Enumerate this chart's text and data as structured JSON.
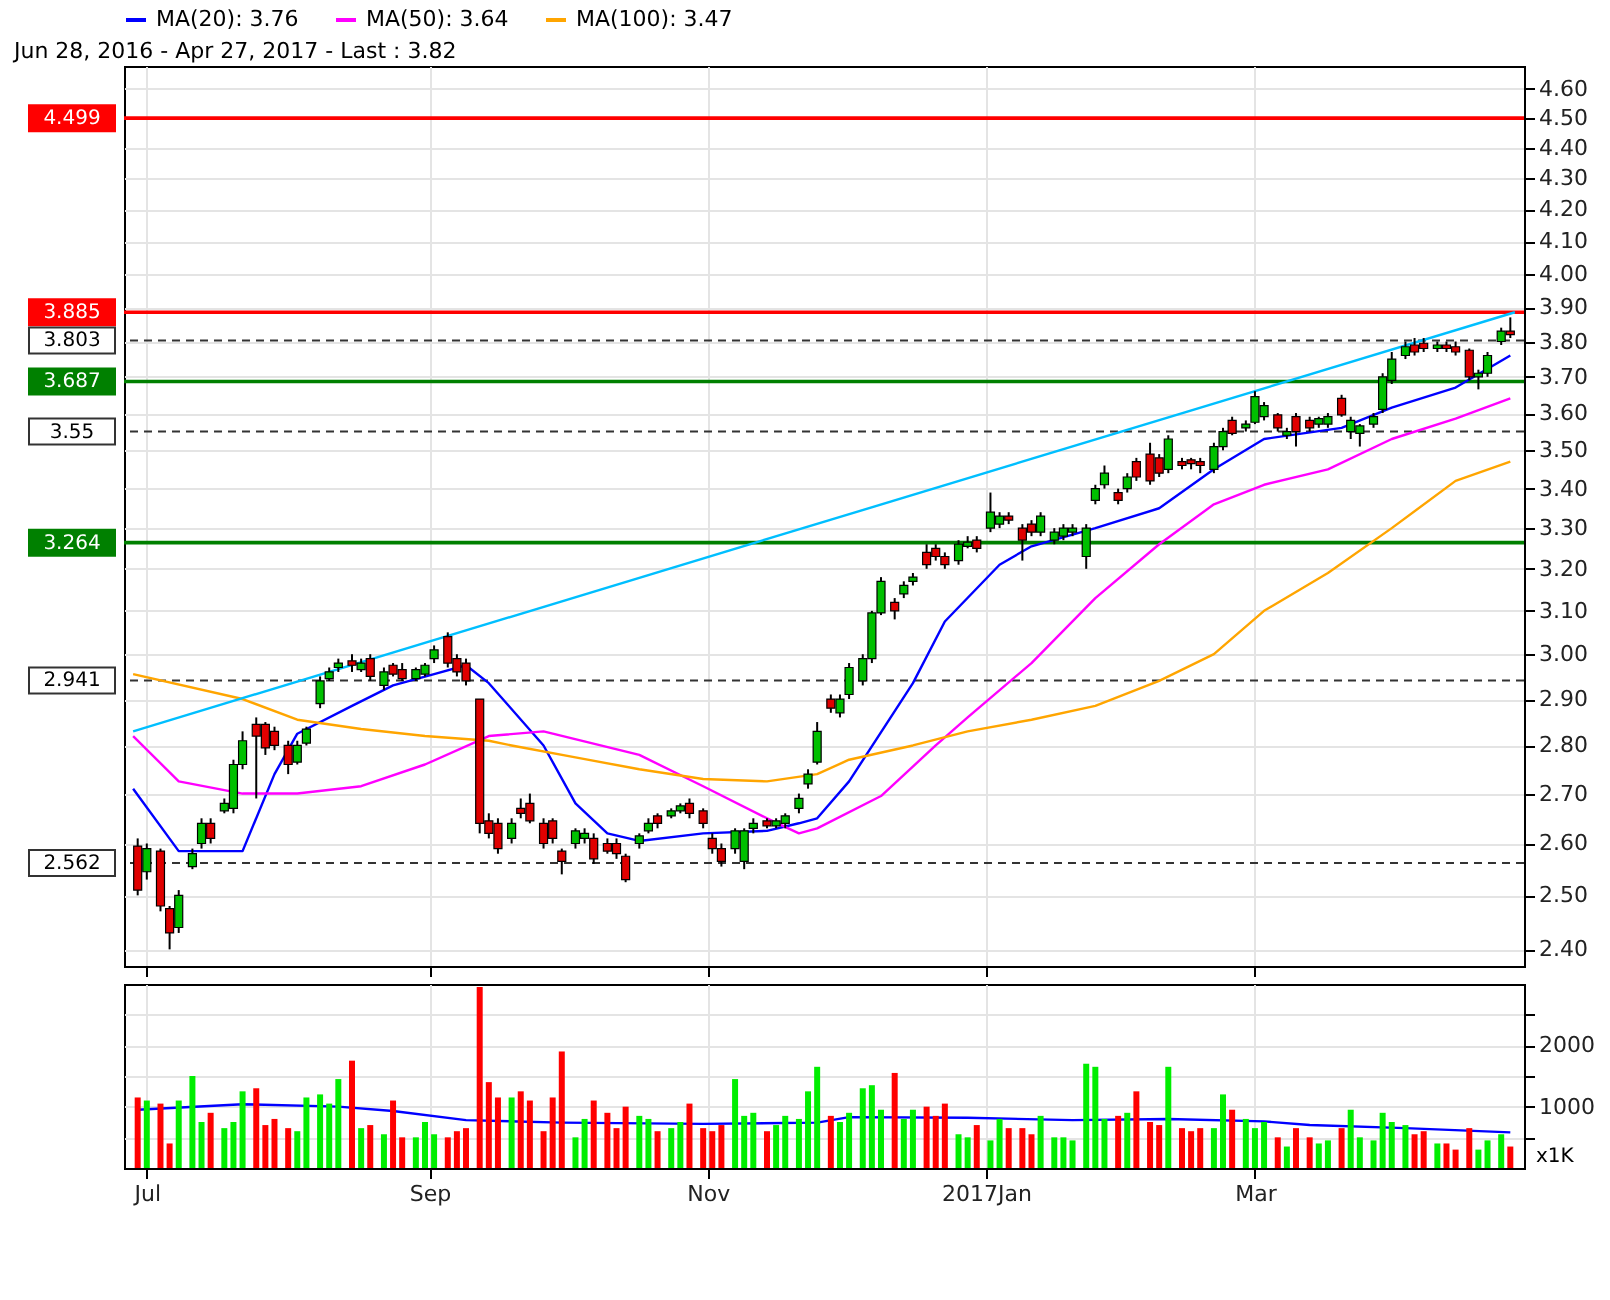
{
  "chart_data": [
    {
      "type": "candlestick",
      "title": "Jun 28, 2016 - Apr 27, 2017 - Last : 3.82",
      "x": [
        "2016-06-29",
        "2016-07-01",
        "2016-07-04",
        "2016-07-06",
        "2016-07-08",
        "2016-07-11",
        "2016-07-13",
        "2016-07-15",
        "2016-07-18",
        "2016-07-20",
        "2016-07-22",
        "2016-07-25",
        "2016-07-27",
        "2016-07-29",
        "2016-08-01",
        "2016-08-03",
        "2016-08-05",
        "2016-08-08",
        "2016-08-10",
        "2016-08-12",
        "2016-08-15",
        "2016-08-17",
        "2016-08-19",
        "2016-08-22",
        "2016-08-24",
        "2016-08-26",
        "2016-08-29",
        "2016-08-31",
        "2016-09-02",
        "2016-09-05",
        "2016-09-07",
        "2016-09-09",
        "2016-09-12",
        "2016-09-14",
        "2016-09-16",
        "2016-09-19",
        "2016-09-21",
        "2016-09-23",
        "2016-09-26",
        "2016-09-28",
        "2016-09-30",
        "2016-10-03",
        "2016-10-05",
        "2016-10-07",
        "2016-10-10",
        "2016-10-12",
        "2016-10-14",
        "2016-10-17",
        "2016-10-19",
        "2016-10-21",
        "2016-10-24",
        "2016-10-26",
        "2016-10-28",
        "2016-10-31",
        "2016-11-02",
        "2016-11-04",
        "2016-11-07",
        "2016-11-09",
        "2016-11-11",
        "2016-11-14",
        "2016-11-16",
        "2016-11-18",
        "2016-11-21",
        "2016-11-23",
        "2016-11-25",
        "2016-11-28",
        "2016-11-30",
        "2016-12-02",
        "2016-12-05",
        "2016-12-07",
        "2016-12-09",
        "2016-12-12",
        "2016-12-14",
        "2016-12-16",
        "2016-12-19",
        "2016-12-21",
        "2016-12-23",
        "2016-12-26",
        "2016-12-28",
        "2016-12-30",
        "2017-01-02",
        "2017-01-04",
        "2017-01-06",
        "2017-01-09",
        "2017-01-11",
        "2017-01-13",
        "2017-01-16",
        "2017-01-18",
        "2017-01-20",
        "2017-01-23",
        "2017-01-25",
        "2017-01-27",
        "2017-01-30",
        "2017-02-01",
        "2017-02-03",
        "2017-02-06",
        "2017-02-08",
        "2017-02-10",
        "2017-02-13",
        "2017-02-15",
        "2017-02-17",
        "2017-02-20",
        "2017-02-22",
        "2017-02-24",
        "2017-02-27",
        "2017-03-01",
        "2017-03-03",
        "2017-03-06",
        "2017-03-08",
        "2017-03-10",
        "2017-03-13",
        "2017-03-15",
        "2017-03-17",
        "2017-03-20",
        "2017-03-22",
        "2017-03-24",
        "2017-03-27",
        "2017-03-29",
        "2017-03-31",
        "2017-04-03",
        "2017-04-05",
        "2017-04-07",
        "2017-04-10",
        "2017-04-12",
        "2017-04-14",
        "2017-04-17",
        "2017-04-19",
        "2017-04-21",
        "2017-04-24",
        "2017-04-26"
      ],
      "ohlc": [
        [
          2.595,
          2.61,
          2.5,
          2.51
        ],
        [
          2.545,
          2.6,
          2.53,
          2.59
        ],
        [
          2.585,
          2.59,
          2.47,
          2.48
        ],
        [
          2.475,
          2.48,
          2.4,
          2.43
        ],
        [
          2.44,
          2.51,
          2.43,
          2.5
        ],
        [
          2.555,
          2.59,
          2.55,
          2.58
        ],
        [
          2.6,
          2.65,
          2.59,
          2.64
        ],
        [
          2.64,
          2.65,
          2.6,
          2.61
        ],
        [
          2.665,
          2.69,
          2.66,
          2.68
        ],
        [
          2.67,
          2.77,
          2.66,
          2.76
        ],
        [
          2.76,
          2.83,
          2.75,
          2.81
        ],
        [
          2.845,
          2.86,
          2.69,
          2.82
        ],
        [
          2.845,
          2.85,
          2.78,
          2.795
        ],
        [
          2.83,
          2.84,
          2.79,
          2.8
        ],
        [
          2.8,
          2.81,
          2.74,
          2.76
        ],
        [
          2.765,
          2.81,
          2.76,
          2.8
        ],
        [
          2.805,
          2.84,
          2.8,
          2.835
        ],
        [
          2.89,
          2.95,
          2.88,
          2.94
        ],
        [
          2.945,
          2.97,
          2.94,
          2.96
        ],
        [
          2.97,
          2.99,
          2.96,
          2.98
        ],
        [
          2.985,
          3.0,
          2.96,
          2.975
        ],
        [
          2.965,
          2.99,
          2.96,
          2.98
        ],
        [
          2.99,
          3.0,
          2.94,
          2.95
        ],
        [
          2.93,
          2.97,
          2.92,
          2.96
        ],
        [
          2.975,
          2.98,
          2.95,
          2.955
        ],
        [
          2.965,
          2.98,
          2.94,
          2.945
        ],
        [
          2.945,
          2.97,
          2.94,
          2.965
        ],
        [
          2.955,
          2.98,
          2.95,
          2.975
        ],
        [
          2.99,
          3.02,
          2.98,
          3.01
        ],
        [
          3.04,
          3.05,
          2.97,
          2.98
        ],
        [
          2.99,
          3.0,
          2.95,
          2.96
        ],
        [
          2.98,
          2.99,
          2.93,
          2.94
        ],
        [
          2.9,
          2.9,
          2.62,
          2.64
        ],
        [
          2.645,
          2.66,
          2.61,
          2.62
        ],
        [
          2.64,
          2.65,
          2.58,
          2.59
        ],
        [
          2.61,
          2.65,
          2.6,
          2.64
        ],
        [
          2.67,
          2.69,
          2.65,
          2.66
        ],
        [
          2.68,
          2.7,
          2.64,
          2.645
        ],
        [
          2.64,
          2.65,
          2.59,
          2.6
        ],
        [
          2.645,
          2.65,
          2.6,
          2.61
        ],
        [
          2.585,
          2.59,
          2.54,
          2.565
        ],
        [
          2.6,
          2.63,
          2.59,
          2.625
        ],
        [
          2.61,
          2.63,
          2.6,
          2.62
        ],
        [
          2.61,
          2.62,
          2.56,
          2.57
        ],
        [
          2.6,
          2.61,
          2.58,
          2.585
        ],
        [
          2.6,
          2.61,
          2.57,
          2.58
        ],
        [
          2.575,
          2.58,
          2.525,
          2.53
        ],
        [
          2.6,
          2.62,
          2.59,
          2.615
        ],
        [
          2.625,
          2.65,
          2.62,
          2.64
        ],
        [
          2.655,
          2.66,
          2.63,
          2.64
        ],
        [
          2.655,
          2.67,
          2.65,
          2.665
        ],
        [
          2.665,
          2.68,
          2.66,
          2.675
        ],
        [
          2.68,
          2.69,
          2.65,
          2.66
        ],
        [
          2.665,
          2.67,
          2.63,
          2.64
        ],
        [
          2.61,
          2.62,
          2.58,
          2.59
        ],
        [
          2.59,
          2.6,
          2.555,
          2.565
        ],
        [
          2.59,
          2.63,
          2.58,
          2.625
        ],
        [
          2.565,
          2.63,
          2.55,
          2.625
        ],
        [
          2.63,
          2.65,
          2.62,
          2.64
        ],
        [
          2.645,
          2.65,
          2.63,
          2.635
        ],
        [
          2.635,
          2.65,
          2.63,
          2.645
        ],
        [
          2.64,
          2.66,
          2.63,
          2.655
        ],
        [
          2.67,
          2.7,
          2.66,
          2.69
        ],
        [
          2.72,
          2.75,
          2.71,
          2.74
        ],
        [
          2.765,
          2.85,
          2.76,
          2.83
        ],
        [
          2.9,
          2.91,
          2.87,
          2.88
        ],
        [
          2.87,
          2.91,
          2.86,
          2.9
        ],
        [
          2.91,
          2.98,
          2.9,
          2.97
        ],
        [
          2.94,
          3.0,
          2.93,
          2.99
        ],
        [
          2.99,
          3.1,
          2.98,
          3.095
        ],
        [
          3.095,
          3.18,
          3.09,
          3.17
        ],
        [
          3.12,
          3.13,
          3.08,
          3.1
        ],
        [
          3.14,
          3.17,
          3.13,
          3.16
        ],
        [
          3.17,
          3.19,
          3.16,
          3.18
        ],
        [
          3.24,
          3.26,
          3.2,
          3.21
        ],
        [
          3.25,
          3.26,
          3.22,
          3.23
        ],
        [
          3.23,
          3.24,
          3.2,
          3.21
        ],
        [
          3.22,
          3.27,
          3.21,
          3.26
        ],
        [
          3.255,
          3.28,
          3.25,
          3.265
        ],
        [
          3.27,
          3.28,
          3.24,
          3.25
        ],
        [
          3.3,
          3.39,
          3.29,
          3.34
        ],
        [
          3.31,
          3.34,
          3.3,
          3.33
        ],
        [
          3.33,
          3.34,
          3.31,
          3.32
        ],
        [
          3.3,
          3.31,
          3.22,
          3.27
        ],
        [
          3.31,
          3.32,
          3.28,
          3.29
        ],
        [
          3.29,
          3.34,
          3.28,
          3.33
        ],
        [
          3.27,
          3.3,
          3.26,
          3.29
        ],
        [
          3.28,
          3.31,
          3.27,
          3.3
        ],
        [
          3.29,
          3.31,
          3.28,
          3.3
        ],
        [
          3.23,
          3.31,
          3.2,
          3.3
        ],
        [
          3.37,
          3.41,
          3.36,
          3.4
        ],
        [
          3.41,
          3.46,
          3.4,
          3.44
        ],
        [
          3.39,
          3.4,
          3.36,
          3.37
        ],
        [
          3.4,
          3.44,
          3.39,
          3.43
        ],
        [
          3.47,
          3.48,
          3.42,
          3.43
        ],
        [
          3.49,
          3.52,
          3.41,
          3.42
        ],
        [
          3.48,
          3.49,
          3.43,
          3.44
        ],
        [
          3.45,
          3.54,
          3.44,
          3.53
        ],
        [
          3.47,
          3.48,
          3.45,
          3.46
        ],
        [
          3.475,
          3.48,
          3.45,
          3.465
        ],
        [
          3.47,
          3.48,
          3.44,
          3.46
        ],
        [
          3.45,
          3.52,
          3.44,
          3.51
        ],
        [
          3.51,
          3.56,
          3.5,
          3.55
        ],
        [
          3.58,
          3.59,
          3.54,
          3.545
        ],
        [
          3.56,
          3.58,
          3.55,
          3.57
        ],
        [
          3.575,
          3.66,
          3.57,
          3.645
        ],
        [
          3.59,
          3.63,
          3.58,
          3.62
        ],
        [
          3.595,
          3.6,
          3.55,
          3.56
        ],
        [
          3.54,
          3.56,
          3.53,
          3.55
        ],
        [
          3.59,
          3.6,
          3.51,
          3.55
        ],
        [
          3.58,
          3.59,
          3.55,
          3.56
        ],
        [
          3.57,
          3.59,
          3.56,
          3.585
        ],
        [
          3.57,
          3.6,
          3.56,
          3.59
        ],
        [
          3.64,
          3.65,
          3.59,
          3.595
        ],
        [
          3.55,
          3.59,
          3.53,
          3.58
        ],
        [
          3.545,
          3.57,
          3.51,
          3.565
        ],
        [
          3.57,
          3.6,
          3.56,
          3.59
        ],
        [
          3.61,
          3.71,
          3.6,
          3.7
        ],
        [
          3.69,
          3.77,
          3.68,
          3.75
        ],
        [
          3.76,
          3.8,
          3.75,
          3.785
        ],
        [
          3.79,
          3.81,
          3.76,
          3.77
        ],
        [
          3.795,
          3.81,
          3.77,
          3.78
        ],
        [
          3.78,
          3.8,
          3.77,
          3.79
        ],
        [
          3.79,
          3.8,
          3.77,
          3.78
        ],
        [
          3.785,
          3.8,
          3.76,
          3.77
        ],
        [
          3.775,
          3.78,
          3.69,
          3.7
        ],
        [
          3.7,
          3.72,
          3.665,
          3.71
        ],
        [
          3.71,
          3.77,
          3.7,
          3.76
        ],
        [
          3.8,
          3.84,
          3.79,
          3.83
        ],
        [
          3.83,
          3.87,
          3.81,
          3.82
        ]
      ],
      "colors": [
        "#e00000",
        "#00c000",
        "#e00000",
        "#e00000",
        "#00c000",
        "#00c000",
        "#00c000",
        "#e00000",
        "#00c000",
        "#00c000",
        "#00c000",
        "#e00000",
        "#e00000",
        "#e00000",
        "#e00000",
        "#00c000",
        "#00c000",
        "#00c000",
        "#00c000",
        "#00c000",
        "#e00000",
        "#00c000",
        "#e00000",
        "#00c000",
        "#e00000",
        "#e00000",
        "#00c000",
        "#00c000",
        "#00c000",
        "#e00000",
        "#e00000",
        "#e00000",
        "#e00000",
        "#e00000",
        "#e00000",
        "#00c000",
        "#e00000",
        "#e00000",
        "#e00000",
        "#e00000",
        "#e00000",
        "#00c000",
        "#00c000",
        "#e00000",
        "#e00000",
        "#e00000",
        "#e00000",
        "#00c000",
        "#00c000",
        "#e00000",
        "#00c000",
        "#00c000",
        "#e00000",
        "#e00000",
        "#e00000",
        "#e00000",
        "#00c000",
        "#00c000",
        "#00c000",
        "#e00000",
        "#00c000",
        "#00c000",
        "#00c000",
        "#00c000",
        "#00c000",
        "#e00000",
        "#00c000",
        "#00c000",
        "#00c000",
        "#00c000",
        "#00c000",
        "#e00000",
        "#00c000",
        "#00c000",
        "#e00000",
        "#e00000",
        "#e00000",
        "#00c000",
        "#00c000",
        "#e00000",
        "#00c000",
        "#00c000",
        "#e00000",
        "#e00000",
        "#e00000",
        "#00c000",
        "#00c000",
        "#00c000",
        "#00c000",
        "#00c000",
        "#00c000",
        "#00c000",
        "#e00000",
        "#00c000",
        "#e00000",
        "#e00000",
        "#e00000",
        "#00c000",
        "#e00000",
        "#e00000",
        "#e00000",
        "#00c000",
        "#00c000",
        "#e00000",
        "#00c000",
        "#00c000",
        "#00c000",
        "#e00000",
        "#00c000",
        "#e00000",
        "#e00000",
        "#00c000",
        "#00c000",
        "#e00000",
        "#00c000",
        "#00c000",
        "#00c000",
        "#00c000",
        "#00c000",
        "#00c000",
        "#e00000",
        "#e00000",
        "#00c000",
        "#e00000",
        "#e00000",
        "#e00000",
        "#00c000",
        "#00c000",
        "#00c000",
        "#e00000"
      ],
      "series": [
        {
          "name": "MA(20): 3.76",
          "type": "line",
          "color": "#0000ff",
          "x": [
            "2016-06-28",
            "2016-07-08",
            "2016-07-22",
            "2016-07-29",
            "2016-08-03",
            "2016-08-15",
            "2016-08-24",
            "2016-09-02",
            "2016-09-09",
            "2016-09-14",
            "2016-09-26",
            "2016-10-03",
            "2016-10-10",
            "2016-10-17",
            "2016-10-31",
            "2016-11-14",
            "2016-11-21",
            "2016-11-25",
            "2016-12-02",
            "2016-12-16",
            "2016-12-23",
            "2017-01-04",
            "2017-01-11",
            "2017-01-25",
            "2017-02-08",
            "2017-02-20",
            "2017-03-03",
            "2017-03-20",
            "2017-03-31",
            "2017-04-14",
            "2017-04-26"
          ],
          "values": [
            2.71,
            2.585,
            2.585,
            2.74,
            2.825,
            2.885,
            2.93,
            2.955,
            2.975,
            2.935,
            2.8,
            2.68,
            2.62,
            2.605,
            2.62,
            2.625,
            2.64,
            2.65,
            2.725,
            2.935,
            3.075,
            3.21,
            3.255,
            3.3,
            3.35,
            3.45,
            3.53,
            3.56,
            3.615,
            3.67,
            3.76
          ]
        },
        {
          "name": "MA(50): 3.64",
          "type": "line",
          "color": "#ff00ff",
          "x": [
            "2016-06-28",
            "2016-07-08",
            "2016-07-22",
            "2016-08-03",
            "2016-08-17",
            "2016-08-31",
            "2016-09-14",
            "2016-09-26",
            "2016-10-17",
            "2016-10-31",
            "2016-11-14",
            "2016-11-21",
            "2016-11-25",
            "2016-12-09",
            "2016-12-21",
            "2016-12-28",
            "2017-01-11",
            "2017-01-25",
            "2017-02-08",
            "2017-02-20",
            "2017-03-03",
            "2017-03-17",
            "2017-03-31",
            "2017-04-14",
            "2017-04-26"
          ],
          "values": [
            2.82,
            2.725,
            2.7,
            2.7,
            2.715,
            2.76,
            2.82,
            2.83,
            2.78,
            2.715,
            2.65,
            2.62,
            2.63,
            2.695,
            2.8,
            2.86,
            2.98,
            3.13,
            3.26,
            3.36,
            3.41,
            3.45,
            3.53,
            3.585,
            3.64
          ]
        },
        {
          "name": "MA(100): 3.47",
          "type": "line",
          "color": "#ffa500",
          "x": [
            "2016-06-28",
            "2016-07-22",
            "2016-08-03",
            "2016-08-17",
            "2016-08-31",
            "2016-09-14",
            "2016-09-19",
            "2016-10-03",
            "2016-10-17",
            "2016-10-31",
            "2016-11-14",
            "2016-11-25",
            "2016-12-02",
            "2016-12-16",
            "2016-12-28",
            "2017-01-11",
            "2017-01-25",
            "2017-02-08",
            "2017-02-20",
            "2017-03-03",
            "2017-03-17",
            "2017-03-31",
            "2017-04-14",
            "2017-04-26"
          ],
          "values": [
            2.955,
            2.9,
            2.855,
            2.835,
            2.82,
            2.81,
            2.8,
            2.775,
            2.75,
            2.73,
            2.725,
            2.74,
            2.77,
            2.8,
            2.83,
            2.855,
            2.885,
            2.94,
            3.0,
            3.1,
            3.19,
            3.3,
            3.42,
            3.47
          ]
        },
        {
          "type": "line",
          "color": "#00bfff",
          "x": [
            "2016-06-28",
            "2017-04-27"
          ],
          "values": [
            2.83,
            3.885
          ]
        }
      ],
      "ref_lines": [
        {
          "axis": "y",
          "value": 4.499,
          "label": "4.499",
          "color": "#ff0000",
          "line_style": "solid"
        },
        {
          "axis": "y",
          "value": 3.885,
          "label": "3.885",
          "color": "#ff0000",
          "line_style": "solid"
        },
        {
          "axis": "y",
          "value": 3.803,
          "label": "3.803",
          "color": "#333333",
          "line_style": "dashed"
        },
        {
          "axis": "y",
          "value": 3.687,
          "label": "3.687",
          "color": "#008000",
          "line_style": "solid"
        },
        {
          "axis": "y",
          "value": 3.55,
          "label": "3.55",
          "color": "#333333",
          "line_style": "dashed"
        },
        {
          "axis": "y",
          "value": 3.264,
          "label": "3.264",
          "color": "#008000",
          "line_style": "solid"
        },
        {
          "axis": "y",
          "value": 2.941,
          "label": "2.941",
          "color": "#333333",
          "line_style": "dashed"
        },
        {
          "axis": "y",
          "value": 2.562,
          "label": "2.562",
          "color": "#333333",
          "line_style": "dashed"
        }
      ],
      "xlim": [
        "2016-06-26",
        "2017-04-29"
      ],
      "xticks": [
        {
          "value": "2016-07-01",
          "label": null
        },
        {
          "value": "2016-09-01",
          "label": null
        },
        {
          "value": "2016-11-01",
          "label": null
        },
        {
          "value": "2017-01-01",
          "label": null
        },
        {
          "value": "2017-03-01",
          "label": null
        }
      ],
      "ylim": [
        2.37,
        4.68
      ],
      "yticks": [
        {
          "value": 2.4,
          "label": "2.40"
        },
        {
          "value": 2.5,
          "label": "2.50"
        },
        {
          "value": 2.6,
          "label": "2.60"
        },
        {
          "value": 2.7,
          "label": "2.70"
        },
        {
          "value": 2.8,
          "label": "2.80"
        },
        {
          "value": 2.9,
          "label": "2.90"
        },
        {
          "value": 3.0,
          "label": "3.00"
        },
        {
          "value": 3.1,
          "label": "3.10"
        },
        {
          "value": 3.2,
          "label": "3.20"
        },
        {
          "value": 3.3,
          "label": "3.30"
        },
        {
          "value": 3.4,
          "label": "3.40"
        },
        {
          "value": 3.5,
          "label": "3.50"
        },
        {
          "value": 3.6,
          "label": "3.60"
        },
        {
          "value": 3.7,
          "label": "3.70"
        },
        {
          "value": 3.8,
          "label": "3.80"
        },
        {
          "value": 3.9,
          "label": "3.90"
        },
        {
          "value": 4.0,
          "label": "4.00"
        },
        {
          "value": 4.1,
          "label": "4.10"
        },
        {
          "value": 4.2,
          "label": "4.20"
        },
        {
          "value": 4.3,
          "label": "4.30"
        },
        {
          "value": 4.4,
          "label": "4.40"
        },
        {
          "value": 4.5,
          "label": "4.50"
        },
        {
          "value": 4.6,
          "label": "4.60"
        }
      ],
      "log": true,
      "grid": true,
      "legend": "top left",
      "tick_labels": "y"
    },
    {
      "type": "bar",
      "x": [
        "2016-06-29",
        "2016-07-01",
        "2016-07-04",
        "2016-07-06",
        "2016-07-08",
        "2016-07-11",
        "2016-07-13",
        "2016-07-15",
        "2016-07-18",
        "2016-07-20",
        "2016-07-22",
        "2016-07-25",
        "2016-07-27",
        "2016-07-29",
        "2016-08-01",
        "2016-08-03",
        "2016-08-05",
        "2016-08-08",
        "2016-08-10",
        "2016-08-12",
        "2016-08-15",
        "2016-08-17",
        "2016-08-19",
        "2016-08-22",
        "2016-08-24",
        "2016-08-26",
        "2016-08-29",
        "2016-08-31",
        "2016-09-02",
        "2016-09-05",
        "2016-09-07",
        "2016-09-09",
        "2016-09-12",
        "2016-09-14",
        "2016-09-16",
        "2016-09-19",
        "2016-09-21",
        "2016-09-23",
        "2016-09-26",
        "2016-09-28",
        "2016-09-30",
        "2016-10-03",
        "2016-10-05",
        "2016-10-07",
        "2016-10-10",
        "2016-10-12",
        "2016-10-14",
        "2016-10-17",
        "2016-10-19",
        "2016-10-21",
        "2016-10-24",
        "2016-10-26",
        "2016-10-28",
        "2016-10-31",
        "2016-11-02",
        "2016-11-04",
        "2016-11-07",
        "2016-11-09",
        "2016-11-11",
        "2016-11-14",
        "2016-11-16",
        "2016-11-18",
        "2016-11-21",
        "2016-11-23",
        "2016-11-25",
        "2016-11-28",
        "2016-11-30",
        "2016-12-02",
        "2016-12-05",
        "2016-12-07",
        "2016-12-09",
        "2016-12-12",
        "2016-12-14",
        "2016-12-16",
        "2016-12-19",
        "2016-12-21",
        "2016-12-23",
        "2016-12-26",
        "2016-12-28",
        "2016-12-30",
        "2017-01-02",
        "2017-01-04",
        "2017-01-06",
        "2017-01-09",
        "2017-01-11",
        "2017-01-13",
        "2017-01-16",
        "2017-01-18",
        "2017-01-20",
        "2017-01-23",
        "2017-01-25",
        "2017-01-27",
        "2017-01-30",
        "2017-02-01",
        "2017-02-03",
        "2017-02-06",
        "2017-02-08",
        "2017-02-10",
        "2017-02-13",
        "2017-02-15",
        "2017-02-17",
        "2017-02-20",
        "2017-02-22",
        "2017-02-24",
        "2017-02-27",
        "2017-03-01",
        "2017-03-03",
        "2017-03-06",
        "2017-03-08",
        "2017-03-10",
        "2017-03-13",
        "2017-03-15",
        "2017-03-17",
        "2017-03-20",
        "2017-03-22",
        "2017-03-24",
        "2017-03-27",
        "2017-03-29",
        "2017-03-31",
        "2017-04-03",
        "2017-04-05",
        "2017-04-07",
        "2017-04-10",
        "2017-04-12",
        "2017-04-14",
        "2017-04-17",
        "2017-04-19",
        "2017-04-21",
        "2017-04-24",
        "2017-04-26"
      ],
      "values": [
        1150,
        1100,
        1050,
        400,
        1100,
        1500,
        750,
        900,
        650,
        750,
        1250,
        1300,
        700,
        800,
        650,
        600,
        1150,
        1200,
        1050,
        1450,
        1750,
        650,
        700,
        550,
        1100,
        500,
        500,
        750,
        550,
        500,
        600,
        650,
        2950,
        1400,
        1150,
        1150,
        1250,
        1100,
        600,
        1150,
        1900,
        500,
        800,
        1100,
        900,
        650,
        1000,
        850,
        800,
        600,
        650,
        750,
        1050,
        650,
        600,
        700,
        1450,
        850,
        900,
        600,
        700,
        850,
        800,
        1250,
        1650,
        850,
        750,
        900,
        1300,
        1350,
        950,
        1550,
        800,
        950,
        1000,
        850,
        1050,
        550,
        500,
        700,
        450,
        800,
        650,
        650,
        550,
        850,
        500,
        500,
        450,
        1700,
        1650,
        800,
        850,
        900,
        1250,
        750,
        700,
        1650,
        650,
        600,
        650,
        650,
        1200,
        950,
        800,
        650,
        750,
        500,
        350,
        650,
        500,
        400,
        450,
        650,
        950,
        500,
        450,
        900,
        750,
        700,
        550,
        600,
        400,
        400,
        300,
        650,
        300,
        450,
        550,
        350
      ],
      "colors": [
        "#ff0000",
        "#00ee00",
        "#ff0000",
        "#ff0000",
        "#00ee00",
        "#00ee00",
        "#00ee00",
        "#ff0000",
        "#00ee00",
        "#00ee00",
        "#00ee00",
        "#ff0000",
        "#ff0000",
        "#ff0000",
        "#ff0000",
        "#00ee00",
        "#00ee00",
        "#00ee00",
        "#00ee00",
        "#00ee00",
        "#ff0000",
        "#00ee00",
        "#ff0000",
        "#00ee00",
        "#ff0000",
        "#ff0000",
        "#00ee00",
        "#00ee00",
        "#00ee00",
        "#ff0000",
        "#ff0000",
        "#ff0000",
        "#ff0000",
        "#ff0000",
        "#ff0000",
        "#00ee00",
        "#ff0000",
        "#ff0000",
        "#ff0000",
        "#ff0000",
        "#ff0000",
        "#00ee00",
        "#00ee00",
        "#ff0000",
        "#ff0000",
        "#ff0000",
        "#ff0000",
        "#00ee00",
        "#00ee00",
        "#ff0000",
        "#00ee00",
        "#00ee00",
        "#ff0000",
        "#ff0000",
        "#ff0000",
        "#ff0000",
        "#00ee00",
        "#00ee00",
        "#00ee00",
        "#ff0000",
        "#00ee00",
        "#00ee00",
        "#00ee00",
        "#00ee00",
        "#00ee00",
        "#ff0000",
        "#00ee00",
        "#00ee00",
        "#00ee00",
        "#00ee00",
        "#00ee00",
        "#ff0000",
        "#00ee00",
        "#00ee00",
        "#ff0000",
        "#ff0000",
        "#ff0000",
        "#00ee00",
        "#00ee00",
        "#ff0000",
        "#00ee00",
        "#00ee00",
        "#ff0000",
        "#ff0000",
        "#ff0000",
        "#00ee00",
        "#00ee00",
        "#00ee00",
        "#00ee00",
        "#00ee00",
        "#00ee00",
        "#00ee00",
        "#ff0000",
        "#00ee00",
        "#ff0000",
        "#ff0000",
        "#ff0000",
        "#00ee00",
        "#ff0000",
        "#ff0000",
        "#ff0000",
        "#00ee00",
        "#00ee00",
        "#ff0000",
        "#00ee00",
        "#00ee00",
        "#00ee00",
        "#ff0000",
        "#00ee00",
        "#ff0000",
        "#ff0000",
        "#00ee00",
        "#00ee00",
        "#ff0000",
        "#00ee00",
        "#00ee00",
        "#00ee00",
        "#00ee00",
        "#00ee00",
        "#00ee00",
        "#ff0000",
        "#ff0000",
        "#00ee00",
        "#ff0000",
        "#ff0000",
        "#ff0000",
        "#00ee00",
        "#00ee00",
        "#00ee00",
        "#ff0000"
      ],
      "series": [
        {
          "type": "line",
          "color": "#0000ff",
          "x": [
            "2016-06-29",
            "2016-07-22",
            "2016-08-12",
            "2016-08-24",
            "2016-09-09",
            "2016-09-30",
            "2016-10-31",
            "2016-11-25",
            "2016-12-02",
            "2016-12-28",
            "2017-01-20",
            "2017-02-10",
            "2017-03-03",
            "2017-03-13",
            "2017-04-03",
            "2017-04-26"
          ],
          "values": [
            950,
            1040,
            1000,
            930,
            780,
            740,
            720,
            740,
            830,
            820,
            780,
            800,
            760,
            700,
            650,
            580
          ]
        }
      ],
      "xlim": [
        "2016-06-26",
        "2017-04-29"
      ],
      "xticks": [
        {
          "value": "2016-07-01",
          "label": "Jul"
        },
        {
          "value": "2016-09-01",
          "label": "Sep"
        },
        {
          "value": "2016-11-01",
          "label": "Nov"
        },
        {
          "value": "2017-01-01",
          "label": "2017Jan"
        },
        {
          "value": "2017-03-01",
          "label": "Mar"
        }
      ],
      "ylim": [
        0,
        3000
      ],
      "yticks": [
        {
          "value": 500,
          "label": null
        },
        1000,
        {
          "value": 1500,
          "label": null
        },
        2000,
        {
          "value": 2500,
          "label": null
        }
      ],
      "grid": true,
      "annotations": [
        "x1K"
      ]
    }
  ]
}
